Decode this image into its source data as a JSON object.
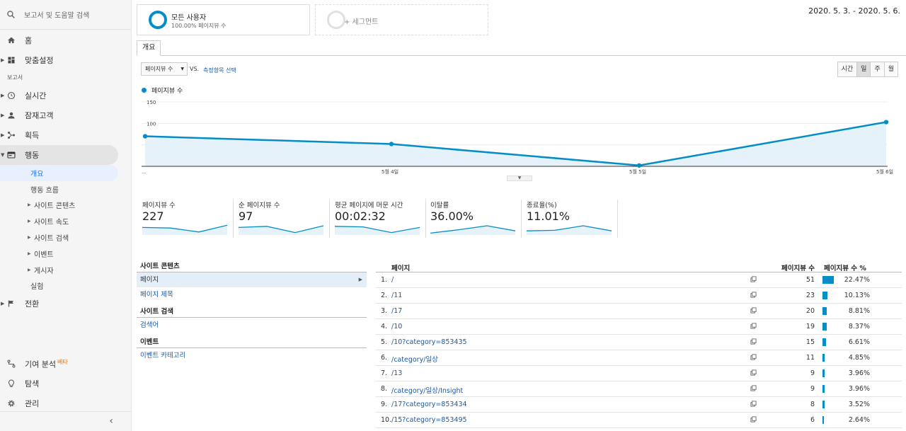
{
  "sidebar": {
    "search_placeholder": "보고서 및 도움말 검색",
    "home": "홈",
    "customization": "맞춤설정",
    "reports_section": "보고서",
    "realtime": "실시간",
    "audience": "잠재고객",
    "acquisition": "획득",
    "behavior": "행동",
    "behavior_items": [
      "개요",
      "행동 흐름"
    ],
    "behavior_groups": [
      "사이트 콘텐츠",
      "사이트 속도",
      "사이트 검색",
      "이벤트",
      "게시자"
    ],
    "experiments": "실험",
    "conversions": "전환",
    "attribution": "기여 분석",
    "beta": "베타",
    "discover": "탐색",
    "admin": "관리"
  },
  "segments": {
    "all_users": "모든 사용자",
    "all_users_sub": "100.00% 페이지뷰 수",
    "add_segment": "+ 세그먼트"
  },
  "date_range": "2020. 5. 3. - 2020. 5. 6.",
  "tab": "개요",
  "controls": {
    "metric": "페이지뷰 수",
    "vs": "VS.",
    "select_metric": "측정항목 선택",
    "time_buttons": [
      "시간",
      "일",
      "주",
      "월"
    ],
    "active_time": "일"
  },
  "chart_data": {
    "type": "area",
    "series": [
      {
        "name": "페이지뷰 수",
        "values": [
          70,
          52,
          2,
          103
        ]
      }
    ],
    "x": [
      "...",
      "5월 4일",
      "5월 5일",
      "5월 6일"
    ],
    "y_ticks": [
      "150",
      "100",
      "50"
    ],
    "ylim": [
      0,
      150
    ],
    "color": "#058dc7"
  },
  "scorecards": [
    {
      "name": "페이지뷰 수",
      "value": "227",
      "spark": [
        0.6,
        0.55,
        0.2,
        0.8
      ]
    },
    {
      "name": "순 페이지뷰 수",
      "value": "97",
      "spark": [
        0.6,
        0.7,
        0.15,
        0.75
      ]
    },
    {
      "name": "평균 페이지에 머문 시간",
      "value": "00:02:32",
      "spark": [
        0.7,
        0.65,
        0.15,
        0.6
      ]
    },
    {
      "name": "이탈률",
      "value": "36.00%",
      "spark": [
        0.1,
        0.4,
        0.75,
        0.3
      ]
    },
    {
      "name": "종료율(%)",
      "value": "11.01%",
      "spark": [
        0.3,
        0.35,
        0.75,
        0.3
      ]
    }
  ],
  "left_table": {
    "site_content": "사이트 콘텐츠",
    "page": "페이지",
    "page_title": "페이지 제목",
    "site_search": "사이트 검색",
    "search_term": "검색어",
    "events": "이벤트",
    "event_category": "이벤트 카테고리"
  },
  "right_table": {
    "col_page": "페이지",
    "col_views": "페이지뷰 수",
    "col_pct": "페이지뷰 수 %",
    "rows": [
      {
        "idx": "1.",
        "page": "/",
        "views": "51",
        "pct": "22.47%",
        "share": 22.47
      },
      {
        "idx": "2.",
        "page": "/11",
        "views": "23",
        "pct": "10.13%",
        "share": 10.13
      },
      {
        "idx": "3.",
        "page": "/17",
        "views": "20",
        "pct": "8.81%",
        "share": 8.81
      },
      {
        "idx": "4.",
        "page": "/10",
        "views": "19",
        "pct": "8.37%",
        "share": 8.37
      },
      {
        "idx": "5.",
        "page": "/10?category=853435",
        "views": "15",
        "pct": "6.61%",
        "share": 6.61
      },
      {
        "idx": "6.",
        "page": "/category/일상",
        "views": "11",
        "pct": "4.85%",
        "share": 4.85
      },
      {
        "idx": "7.",
        "page": "/13",
        "views": "9",
        "pct": "3.96%",
        "share": 3.96
      },
      {
        "idx": "8.",
        "page": "/category/일상/Insight",
        "views": "9",
        "pct": "3.96%",
        "share": 3.96
      },
      {
        "idx": "9.",
        "page": "/17?category=853434",
        "views": "8",
        "pct": "3.52%",
        "share": 3.52
      },
      {
        "idx": "10.",
        "page": "/15?category=853495",
        "views": "6",
        "pct": "2.64%",
        "share": 2.64
      }
    ]
  }
}
